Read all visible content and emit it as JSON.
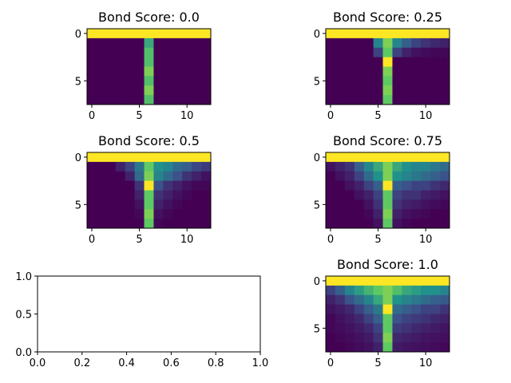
{
  "chart_data": [
    {
      "type": "heatmap",
      "title": "Bond Score: 0.0",
      "xlabel": "",
      "ylabel": "",
      "xticks": [
        "0",
        "5",
        "10"
      ],
      "yticks": [
        "0",
        "5"
      ],
      "grid": [
        [
          1,
          1,
          1,
          1,
          1,
          1,
          1,
          1,
          1,
          1,
          1,
          1,
          1
        ],
        [
          0,
          0,
          0,
          0,
          0,
          0,
          0.6,
          0,
          0,
          0,
          0,
          0,
          0
        ],
        [
          0,
          0,
          0,
          0,
          0,
          0,
          0.7,
          0,
          0,
          0,
          0,
          0,
          0
        ],
        [
          0,
          0,
          0,
          0,
          0,
          0,
          0.7,
          0,
          0,
          0,
          0,
          0,
          0
        ],
        [
          0,
          0,
          0,
          0,
          0,
          0,
          0.8,
          0,
          0,
          0,
          0,
          0,
          0
        ],
        [
          0,
          0,
          0,
          0,
          0,
          0,
          0.7,
          0,
          0,
          0,
          0,
          0,
          0
        ],
        [
          0,
          0,
          0,
          0,
          0,
          0,
          0.8,
          0,
          0,
          0,
          0,
          0,
          0
        ],
        [
          0,
          0,
          0,
          0,
          0,
          0,
          0.7,
          0,
          0,
          0,
          0,
          0,
          0
        ]
      ]
    },
    {
      "type": "heatmap",
      "title": "Bond Score: 0.25",
      "xlabel": "",
      "ylabel": "",
      "xticks": [
        "0",
        "5",
        "10"
      ],
      "yticks": [
        "0",
        "5"
      ],
      "grid": [
        [
          1,
          1,
          1,
          1,
          1,
          1,
          1,
          1,
          1,
          1,
          1,
          1,
          1
        ],
        [
          0,
          0,
          0,
          0,
          0,
          0.45,
          0.8,
          0.45,
          0.3,
          0.2,
          0.15,
          0.12,
          0.1
        ],
        [
          0,
          0,
          0,
          0,
          0,
          0.2,
          0.75,
          0.2,
          0.1,
          0.05,
          0.03,
          0.02,
          0.02
        ],
        [
          0,
          0,
          0,
          0,
          0,
          0,
          1,
          0,
          0,
          0,
          0,
          0,
          0
        ],
        [
          0,
          0,
          0,
          0,
          0,
          0,
          0.8,
          0,
          0,
          0,
          0,
          0,
          0
        ],
        [
          0,
          0,
          0,
          0,
          0,
          0,
          0.75,
          0,
          0,
          0,
          0,
          0,
          0
        ],
        [
          0,
          0,
          0,
          0,
          0,
          0,
          0.8,
          0,
          0,
          0,
          0,
          0,
          0
        ],
        [
          0,
          0,
          0,
          0,
          0,
          0,
          0.75,
          0,
          0,
          0,
          0,
          0,
          0
        ]
      ]
    },
    {
      "type": "heatmap",
      "title": "Bond Score: 0.5",
      "xlabel": "",
      "ylabel": "",
      "xticks": [
        "0",
        "5",
        "10"
      ],
      "yticks": [
        "0",
        "5"
      ],
      "grid": [
        [
          1,
          1,
          1,
          1,
          1,
          1,
          1,
          1,
          1,
          1,
          1,
          1,
          1
        ],
        [
          0,
          0,
          0,
          0.1,
          0.2,
          0.4,
          0.75,
          0.5,
          0.45,
          0.35,
          0.3,
          0.22,
          0.18
        ],
        [
          0,
          0,
          0,
          0,
          0.1,
          0.35,
          0.8,
          0.45,
          0.35,
          0.25,
          0.15,
          0.1,
          0.05
        ],
        [
          0,
          0,
          0,
          0,
          0,
          0.15,
          1,
          0.25,
          0.15,
          0.1,
          0.05,
          0.02,
          0.02
        ],
        [
          0,
          0,
          0,
          0,
          0,
          0.1,
          0.75,
          0.15,
          0.1,
          0.05,
          0.02,
          0,
          0
        ],
        [
          0,
          0,
          0,
          0,
          0,
          0.05,
          0.75,
          0.1,
          0.05,
          0.02,
          0,
          0,
          0
        ],
        [
          0,
          0,
          0,
          0,
          0,
          0.02,
          0.8,
          0.05,
          0.02,
          0,
          0,
          0,
          0
        ],
        [
          0,
          0,
          0,
          0,
          0,
          0,
          0.75,
          0.02,
          0,
          0,
          0,
          0,
          0
        ]
      ]
    },
    {
      "type": "heatmap",
      "title": "Bond Score: 0.75",
      "xlabel": "",
      "ylabel": "",
      "xticks": [
        "0",
        "5",
        "10"
      ],
      "yticks": [
        "0",
        "5"
      ],
      "grid": [
        [
          1,
          1,
          1,
          1,
          1,
          1,
          1,
          1,
          1,
          1,
          1,
          1,
          1
        ],
        [
          0.05,
          0.1,
          0.15,
          0.3,
          0.45,
          0.6,
          0.8,
          0.6,
          0.5,
          0.45,
          0.45,
          0.4,
          0.35
        ],
        [
          0,
          0.05,
          0.1,
          0.2,
          0.35,
          0.5,
          0.8,
          0.5,
          0.45,
          0.4,
          0.35,
          0.3,
          0.25
        ],
        [
          0,
          0,
          0.05,
          0.1,
          0.2,
          0.3,
          1,
          0.3,
          0.25,
          0.2,
          0.2,
          0.15,
          0.12
        ],
        [
          0,
          0,
          0,
          0.05,
          0.1,
          0.2,
          0.75,
          0.2,
          0.15,
          0.15,
          0.1,
          0.08,
          0.05
        ],
        [
          0,
          0,
          0,
          0,
          0.05,
          0.15,
          0.75,
          0.15,
          0.1,
          0.08,
          0.05,
          0.03,
          0.02
        ],
        [
          0,
          0,
          0,
          0,
          0.02,
          0.1,
          0.8,
          0.1,
          0.05,
          0.03,
          0.02,
          0,
          0
        ],
        [
          0,
          0,
          0,
          0,
          0,
          0.05,
          0.75,
          0.05,
          0.02,
          0,
          0,
          0,
          0
        ]
      ]
    },
    {
      "type": "line",
      "title": "",
      "xlabel": "",
      "ylabel": "",
      "xlim": [
        0,
        1
      ],
      "ylim": [
        0,
        1
      ],
      "xticks": [
        "0.0",
        "0.2",
        "0.4",
        "0.6",
        "0.8",
        "1.0"
      ],
      "yticks": [
        "0.0",
        "0.5",
        "1.0"
      ],
      "series": []
    },
    {
      "type": "heatmap",
      "title": "Bond Score: 1.0",
      "xlabel": "",
      "ylabel": "",
      "xticks": [
        "0",
        "5",
        "10"
      ],
      "yticks": [
        "0",
        "5"
      ],
      "grid": [
        [
          1,
          1,
          1,
          1,
          1,
          1,
          1,
          1,
          1,
          1,
          1,
          1,
          1
        ],
        [
          0.2,
          0.3,
          0.45,
          0.55,
          0.65,
          0.75,
          0.8,
          0.7,
          0.6,
          0.55,
          0.5,
          0.5,
          0.45
        ],
        [
          0.1,
          0.15,
          0.25,
          0.35,
          0.45,
          0.6,
          0.8,
          0.5,
          0.45,
          0.4,
          0.35,
          0.3,
          0.28
        ],
        [
          0.05,
          0.08,
          0.12,
          0.2,
          0.3,
          0.4,
          1,
          0.35,
          0.3,
          0.25,
          0.2,
          0.2,
          0.15
        ],
        [
          0.02,
          0.05,
          0.08,
          0.12,
          0.2,
          0.3,
          0.75,
          0.25,
          0.2,
          0.18,
          0.15,
          0.12,
          0.1
        ],
        [
          0.02,
          0.03,
          0.05,
          0.08,
          0.12,
          0.2,
          0.75,
          0.18,
          0.15,
          0.12,
          0.1,
          0.08,
          0.06
        ],
        [
          0,
          0.02,
          0.03,
          0.05,
          0.08,
          0.15,
          0.8,
          0.12,
          0.1,
          0.08,
          0.06,
          0.05,
          0.04
        ],
        [
          0,
          0,
          0.02,
          0.03,
          0.05,
          0.1,
          0.75,
          0.08,
          0.06,
          0.05,
          0.04,
          0.03,
          0.02
        ]
      ]
    }
  ]
}
